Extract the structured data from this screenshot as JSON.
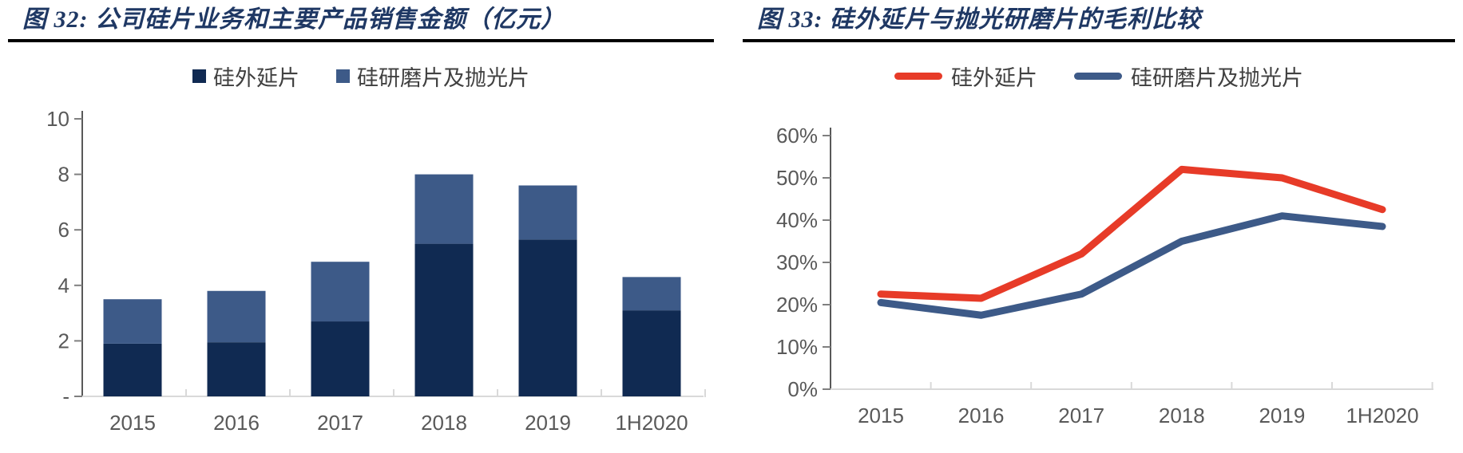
{
  "figures": [
    {
      "title": "图 32:  公司硅片业务和主要产品销售金额（亿元）"
    },
    {
      "title": "图 33:  硅外延片与抛光研磨片的毛利比较"
    }
  ],
  "chart_data": [
    {
      "type": "bar",
      "stacked": true,
      "title": "图 32: 公司硅片业务和主要产品销售金额（亿元）",
      "categories": [
        "2015",
        "2016",
        "2017",
        "2018",
        "2019",
        "1H2020"
      ],
      "series": [
        {
          "name": "硅外延片",
          "color": "#102A52",
          "values": [
            1.9,
            1.95,
            2.7,
            5.5,
            5.65,
            3.1
          ]
        },
        {
          "name": "硅研磨片及抛光片",
          "color": "#3D5A88",
          "values": [
            1.6,
            1.85,
            2.15,
            2.5,
            1.95,
            1.2
          ]
        }
      ],
      "ylim": [
        0,
        10
      ],
      "yticks": [
        0,
        2,
        4,
        6,
        8,
        10
      ],
      "ytick_labels": [
        "-",
        "2",
        "4",
        "6",
        "8",
        "10"
      ],
      "xlabel": "",
      "ylabel": "",
      "grid": false,
      "legend_position": "top"
    },
    {
      "type": "line",
      "title": "图 33: 硅外延片与抛光研磨片的毛利比较",
      "categories": [
        "2015",
        "2016",
        "2017",
        "2018",
        "2019",
        "1H2020"
      ],
      "series": [
        {
          "name": "硅外延片",
          "color": "#E73B28",
          "values": [
            22.5,
            21.5,
            32,
            52,
            50,
            42.5
          ]
        },
        {
          "name": "硅研磨片及抛光片",
          "color": "#3D5A88",
          "values": [
            20.5,
            17.5,
            22.5,
            35,
            41,
            38.5
          ]
        }
      ],
      "ylim": [
        0,
        60
      ],
      "yticks": [
        0,
        10,
        20,
        30,
        40,
        50,
        60
      ],
      "ytick_labels": [
        "0%",
        "10%",
        "20%",
        "30%",
        "40%",
        "50%",
        "60%"
      ],
      "xlabel": "",
      "ylabel": "",
      "grid": false,
      "legend_position": "top"
    }
  ],
  "styles": {
    "title_color": "#1F3864",
    "rule_color": "#000000",
    "axis_text_color": "#595959",
    "axis_line_color": "#595959",
    "tick_color": "#7F7F7F",
    "baseline_color": "#D9D9D9",
    "legend_text_color": "#404040",
    "background": "#FFFFFF"
  }
}
